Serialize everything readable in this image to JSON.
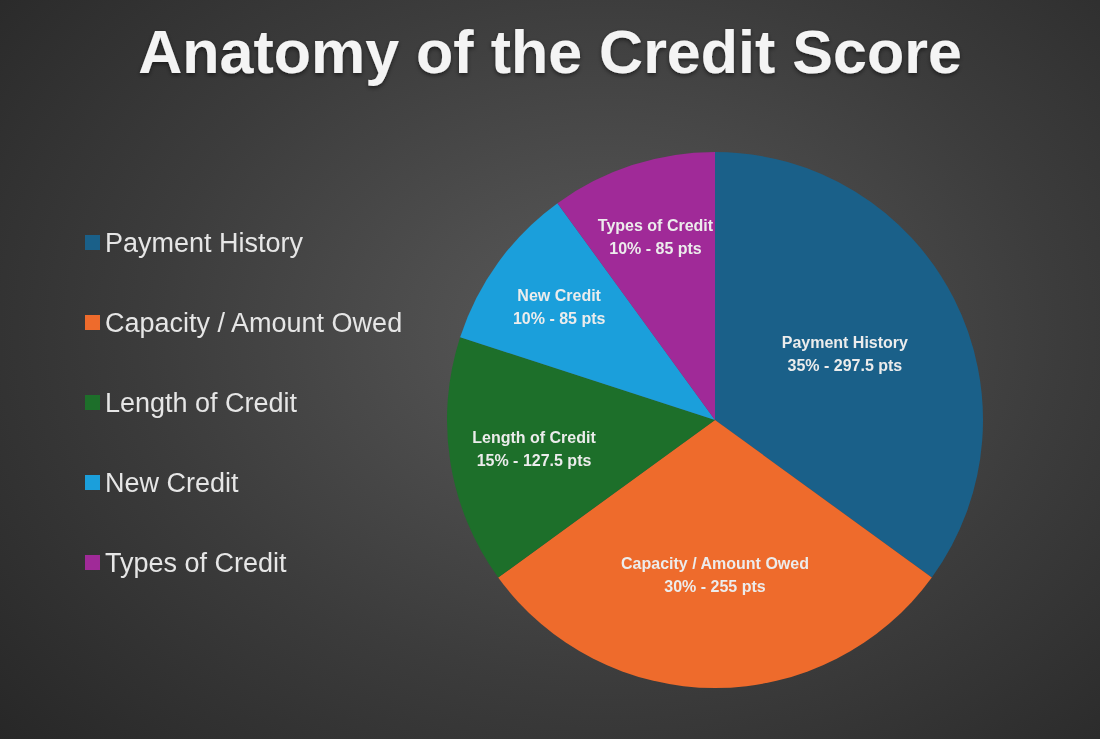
{
  "chart_data": {
    "type": "pie",
    "title": "Anatomy of the Credit Score",
    "categories": [
      "Payment History",
      "Capacity / Amount Owed",
      "Length of Credit",
      "New Credit",
      "Types of Credit"
    ],
    "values": [
      35,
      30,
      15,
      10,
      10
    ],
    "value_labels": [
      "35% - 297.5 pts",
      "30% - 255 pts",
      "15% - 127.5 pts",
      "10% - 85 pts",
      "10% - 85 pts"
    ],
    "colors": [
      "#1a6089",
      "#ee6b2c",
      "#1d6f2a",
      "#1b9fdb",
      "#a02a98"
    ],
    "legend": "left"
  }
}
